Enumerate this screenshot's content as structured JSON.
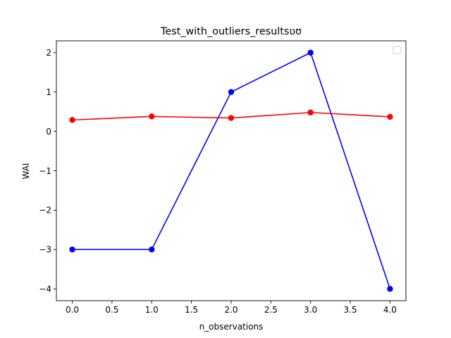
{
  "chart_data": {
    "type": "line",
    "title": "Test_with_outliers_resultsʋʊ",
    "xlabel": "n_observations",
    "ylabel": "WAI",
    "xlim": [
      -0.2,
      4.2
    ],
    "ylim": [
      -4.3,
      2.3
    ],
    "xticks": [
      {
        "v": 0.0,
        "label": "0.0"
      },
      {
        "v": 0.5,
        "label": "0.5"
      },
      {
        "v": 1.0,
        "label": "1.0"
      },
      {
        "v": 1.5,
        "label": "1.5"
      },
      {
        "v": 2.0,
        "label": "2.0"
      },
      {
        "v": 2.5,
        "label": "2.5"
      },
      {
        "v": 3.0,
        "label": "3.0"
      },
      {
        "v": 3.5,
        "label": "3.5"
      },
      {
        "v": 4.0,
        "label": "4.0"
      }
    ],
    "yticks": [
      {
        "v": 2,
        "label": "2"
      },
      {
        "v": 1,
        "label": "1"
      },
      {
        "v": 0,
        "label": "0"
      },
      {
        "v": -1,
        "label": "−1"
      },
      {
        "v": -2,
        "label": "−2"
      },
      {
        "v": -3,
        "label": "−3"
      },
      {
        "v": -4,
        "label": "−4"
      }
    ],
    "x": [
      0,
      1,
      2,
      3,
      4
    ],
    "series": [
      {
        "color": "#0000ff",
        "values": [
          -3,
          -3,
          1,
          2,
          -4
        ]
      },
      {
        "color": "#ff0000",
        "values": [
          0.29,
          0.38,
          0.34,
          0.48,
          0.37
        ]
      }
    ],
    "grid": false,
    "legend": "top-right (empty)"
  }
}
